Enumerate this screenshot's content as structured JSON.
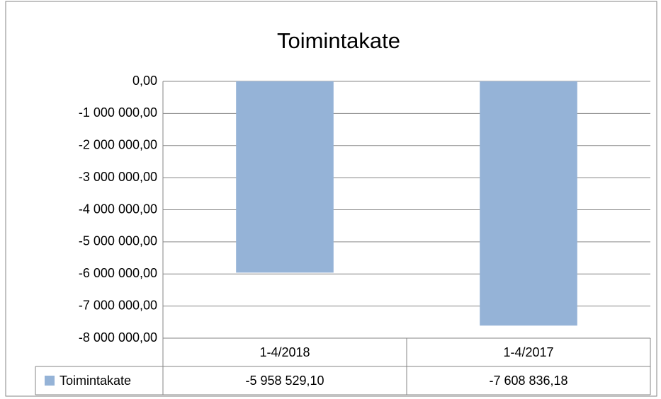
{
  "chart_data": {
    "type": "bar",
    "title": "Toimintakate",
    "categories": [
      "1-4/2018",
      "1-4/2017"
    ],
    "series": [
      {
        "name": "Toimintakate",
        "color": "#95b3d7",
        "values": [
          -5958529.1,
          -7608836.18
        ],
        "value_labels": [
          "-5 958 529,10",
          "-7 608 836,18"
        ]
      }
    ],
    "ylim": [
      -8000000,
      0
    ],
    "yticks": [
      {
        "value": 0,
        "label": "0,00"
      },
      {
        "value": -1000000,
        "label": "-1 000 000,00"
      },
      {
        "value": -2000000,
        "label": "-2 000 000,00"
      },
      {
        "value": -3000000,
        "label": "-3 000 000,00"
      },
      {
        "value": -4000000,
        "label": "-4 000 000,00"
      },
      {
        "value": -5000000,
        "label": "-5 000 000,00"
      },
      {
        "value": -6000000,
        "label": "-6 000 000,00"
      },
      {
        "value": -7000000,
        "label": "-7 000 000,00"
      },
      {
        "value": -8000000,
        "label": "-8 000 000,00"
      }
    ],
    "grid": true
  }
}
